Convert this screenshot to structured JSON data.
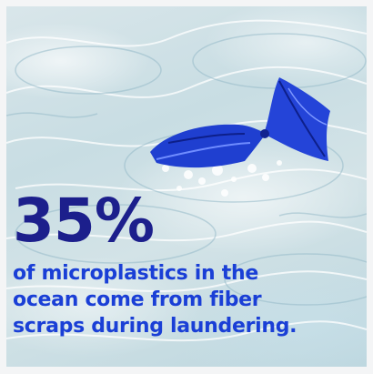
{
  "stat": "35%",
  "caption_lines": [
    "of microplastics in the",
    "ocean come from fiber",
    "scraps during laundering."
  ],
  "colors": {
    "stat": "#1c1f8c",
    "caption": "#1a3fd6",
    "bag": "#1f3fd0",
    "water": "#cfe1e6"
  },
  "image_subject": "blue-fabric-in-water"
}
